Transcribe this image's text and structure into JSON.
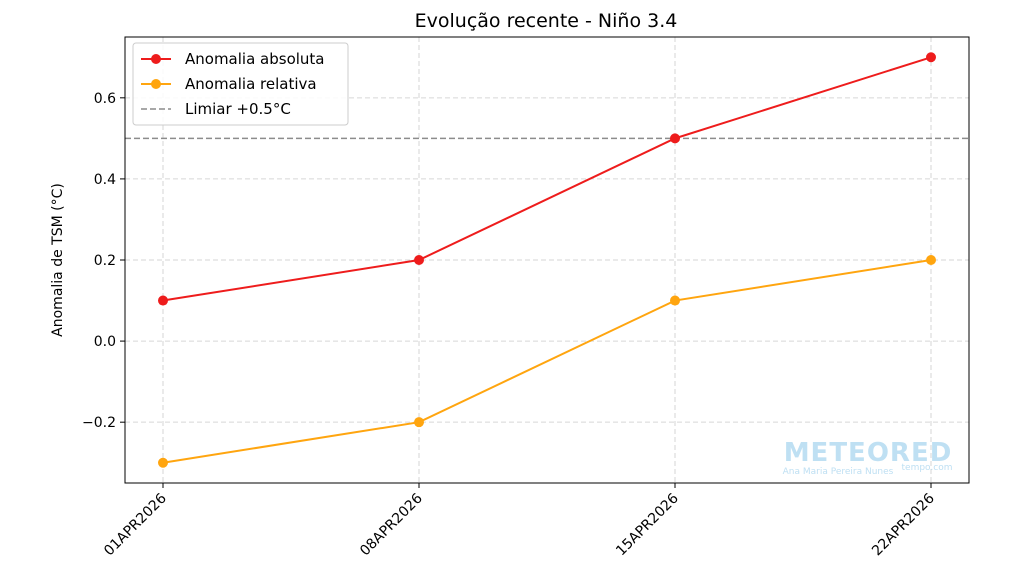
{
  "chart_data": {
    "type": "line",
    "title": "Evolução recente - Niño 3.4",
    "xlabel": "",
    "ylabel": "Anomalia de TSM (°C)",
    "categories": [
      "01APR2026",
      "08APR2026",
      "15APR2026",
      "22APR2026"
    ],
    "y_ticks": [
      "−0.2",
      "0.0",
      "0.2",
      "0.4",
      "0.6"
    ],
    "y_tick_values": [
      -0.2,
      0.0,
      0.2,
      0.4,
      0.6
    ],
    "ylim": [
      -0.35,
      0.75
    ],
    "grid": true,
    "legend_position": "top-left",
    "series": [
      {
        "name": "Anomalia absoluta",
        "values": [
          0.1,
          0.2,
          0.5,
          0.7
        ],
        "color": "#ee1c1c",
        "marker": "circle"
      },
      {
        "name": "Anomalia relativa",
        "values": [
          -0.3,
          -0.2,
          0.1,
          0.2
        ],
        "color": "#ffa50f",
        "marker": "circle"
      }
    ],
    "reference_lines": [
      {
        "name": "Limiar +0.5°C",
        "y": 0.5,
        "color": "#8c8c8c",
        "style": "dashed"
      }
    ]
  },
  "watermark": {
    "brand": "METEORED",
    "author": "Ana Maria Pereira Nunes",
    "site": "tempo.com"
  }
}
